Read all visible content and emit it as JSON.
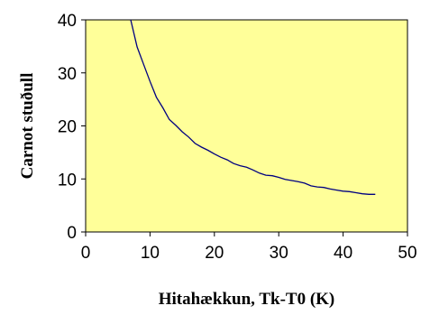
{
  "chart_data": {
    "type": "line",
    "title": "",
    "xlabel": "Hitahækkun, Tk-T0 (K)",
    "ylabel": "Carnot stuðull",
    "xlim": [
      0,
      50
    ],
    "ylim": [
      0,
      40
    ],
    "x_ticks": [
      "0",
      "10",
      "20",
      "30",
      "40",
      "50"
    ],
    "y_ticks": [
      "0",
      "10",
      "20",
      "30",
      "40"
    ],
    "grid": false,
    "legend": "none",
    "plot_background": "#FFFF99",
    "line_color": "#000080",
    "series": [
      {
        "x": [
          7,
          8,
          9,
          10,
          11,
          12,
          13,
          14,
          15,
          16,
          17,
          18,
          19,
          20,
          21,
          22,
          23,
          24,
          25,
          26,
          27,
          28,
          29,
          30,
          31,
          32,
          33,
          34,
          35,
          36,
          37,
          38,
          39,
          40,
          41,
          42,
          43,
          44,
          45
        ],
        "y": [
          40,
          34.9,
          31.6,
          28.4,
          25.4,
          23.4,
          21.2,
          20.1,
          18.9,
          17.9,
          16.7,
          16.0,
          15.4,
          14.7,
          14.1,
          13.6,
          12.9,
          12.5,
          12.2,
          11.7,
          11.1,
          10.7,
          10.6,
          10.3,
          9.9,
          9.7,
          9.5,
          9.2,
          8.7,
          8.5,
          8.4,
          8.1,
          7.9,
          7.7,
          7.6,
          7.4,
          7.2,
          7.1,
          7.1
        ]
      }
    ]
  }
}
